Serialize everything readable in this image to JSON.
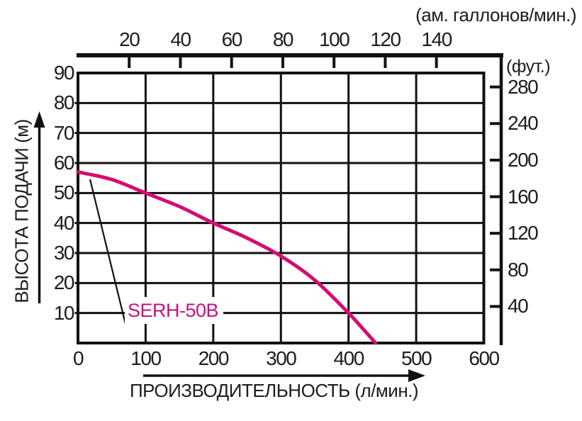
{
  "colors": {
    "axis": "#111111",
    "text": "#1c1c1c",
    "background": "#ffffff"
  },
  "chart_data": {
    "type": "line",
    "title": "",
    "xlabel": "ПРОИЗВОДИТЕЛЬНОСТЬ (л/мин.)",
    "ylabel": "ВЫСОТА ПОДАЧИ (м)",
    "top_axis_label": "(ам. галлонов/мин.)",
    "right_axis_label": "(фут.)",
    "xlim": [
      0,
      600
    ],
    "ylim": [
      0,
      90
    ],
    "grid": true,
    "x_ticks_l_min": [
      0,
      100,
      200,
      300,
      400,
      500,
      600
    ],
    "y_ticks_m": [
      10,
      20,
      30,
      40,
      50,
      60,
      70,
      80,
      90
    ],
    "top_ticks_gal_min": [
      20,
      40,
      60,
      80,
      100,
      120,
      140
    ],
    "right_ticks_ft": [
      40,
      80,
      120,
      160,
      200,
      240,
      280
    ],
    "series": [
      {
        "name": "SERH-50B",
        "color": "#d40d6e",
        "label_color": "#c3137d",
        "points_l_min_vs_m": [
          [
            0,
            57
          ],
          [
            50,
            54.5
          ],
          [
            100,
            50
          ],
          [
            150,
            45.5
          ],
          [
            200,
            40
          ],
          [
            250,
            35
          ],
          [
            300,
            29
          ],
          [
            350,
            21
          ],
          [
            400,
            10
          ],
          [
            440,
            0
          ]
        ]
      }
    ]
  }
}
